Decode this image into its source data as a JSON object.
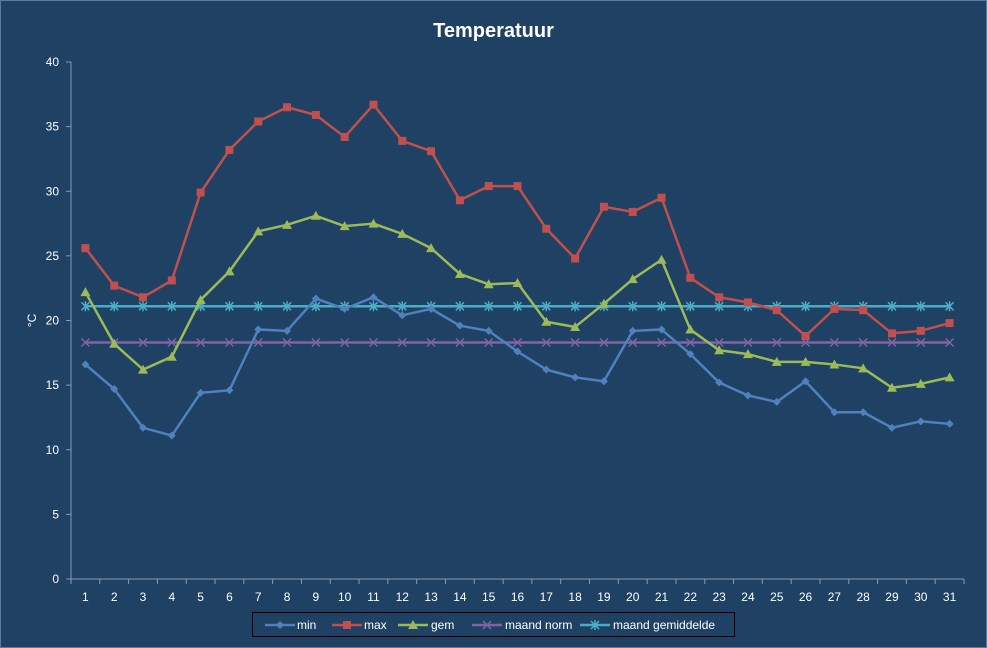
{
  "chart_data": {
    "type": "line",
    "title": "Temperatuur",
    "xlabel": "",
    "ylabel": "°C",
    "ylim": [
      0,
      40
    ],
    "yticks": [
      0,
      5,
      10,
      15,
      20,
      25,
      30,
      35,
      40
    ],
    "categories": [
      "1",
      "2",
      "3",
      "4",
      "5",
      "6",
      "7",
      "8",
      "9",
      "10",
      "11",
      "12",
      "13",
      "14",
      "15",
      "16",
      "17",
      "18",
      "19",
      "20",
      "21",
      "22",
      "23",
      "24",
      "25",
      "26",
      "27",
      "28",
      "29",
      "30",
      "31"
    ],
    "grid": false,
    "legend_position": "bottom",
    "series": [
      {
        "name": "min",
        "color": "#4f81bd",
        "marker": "diamond",
        "values": [
          16.6,
          14.7,
          11.7,
          11.1,
          14.4,
          14.6,
          19.3,
          19.2,
          21.7,
          20.9,
          21.8,
          20.4,
          20.9,
          19.6,
          19.2,
          17.6,
          16.2,
          15.6,
          15.3,
          19.2,
          19.3,
          17.4,
          15.2,
          14.2,
          13.7,
          15.3,
          12.9,
          12.9,
          11.7,
          12.2,
          12.0
        ]
      },
      {
        "name": "max",
        "color": "#c0504d",
        "marker": "square",
        "values": [
          25.6,
          22.7,
          21.8,
          23.1,
          29.9,
          33.2,
          35.4,
          36.5,
          35.9,
          34.2,
          36.7,
          33.9,
          33.1,
          29.3,
          30.4,
          30.4,
          27.1,
          24.8,
          28.8,
          28.4,
          29.5,
          23.3,
          21.8,
          21.4,
          20.8,
          18.8,
          20.9,
          20.8,
          19.0,
          19.2,
          19.8
        ]
      },
      {
        "name": "gem",
        "color": "#9bbb59",
        "marker": "triangle",
        "values": [
          22.2,
          18.2,
          16.2,
          17.2,
          21.6,
          23.8,
          26.9,
          27.4,
          28.1,
          27.3,
          27.5,
          26.7,
          25.6,
          23.6,
          22.8,
          22.9,
          19.9,
          19.5,
          21.3,
          23.2,
          24.7,
          19.3,
          17.7,
          17.4,
          16.8,
          16.8,
          16.6,
          16.3,
          14.8,
          15.1,
          15.6
        ]
      },
      {
        "name": "maand norm",
        "color": "#8064a2",
        "marker": "x",
        "values": [
          18.3,
          18.3,
          18.3,
          18.3,
          18.3,
          18.3,
          18.3,
          18.3,
          18.3,
          18.3,
          18.3,
          18.3,
          18.3,
          18.3,
          18.3,
          18.3,
          18.3,
          18.3,
          18.3,
          18.3,
          18.3,
          18.3,
          18.3,
          18.3,
          18.3,
          18.3,
          18.3,
          18.3,
          18.3,
          18.3,
          18.3
        ]
      },
      {
        "name": "maand gemiddelde",
        "color": "#4bacc6",
        "marker": "star",
        "values": [
          21.1,
          21.1,
          21.1,
          21.1,
          21.1,
          21.1,
          21.1,
          21.1,
          21.1,
          21.1,
          21.1,
          21.1,
          21.1,
          21.1,
          21.1,
          21.1,
          21.1,
          21.1,
          21.1,
          21.1,
          21.1,
          21.1,
          21.1,
          21.1,
          21.1,
          21.1,
          21.1,
          21.1,
          21.1,
          21.1,
          21.1
        ]
      }
    ]
  }
}
